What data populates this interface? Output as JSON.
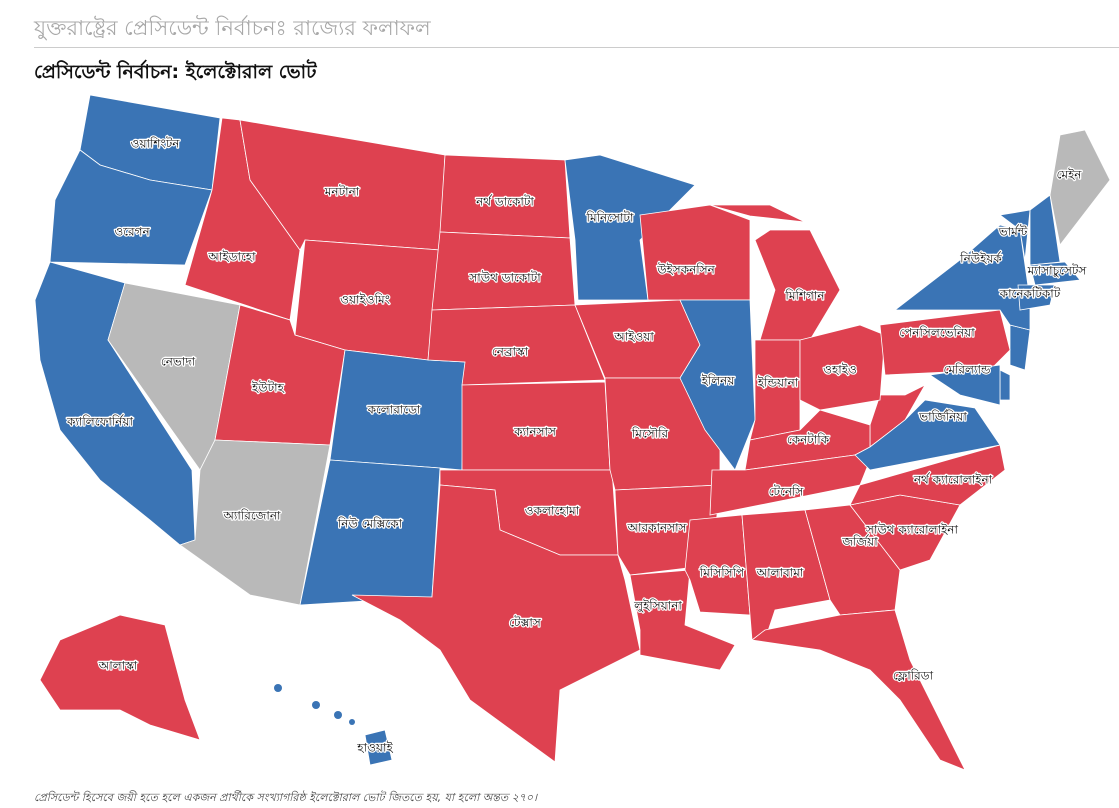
{
  "header": {
    "title": "যুক্তরাষ্ট্রের প্রেসিডেন্ট নির্বাচনঃ রাজ্যের ফলাফল",
    "subtitle": "প্রেসিডেন্ট নির্বাচন: ইলেক্টোরাল ভোট"
  },
  "map": {
    "states": [
      {
        "label": "ওয়াশিংটন",
        "color": "#3a74b5"
      },
      {
        "label": "ওরেগন",
        "color": "#3a74b5"
      },
      {
        "label": "ক্যালিফোর্নিয়া",
        "color": "#3a74b5"
      },
      {
        "label": "নেভাদা",
        "color": "#b9b9b9"
      },
      {
        "label": "আইডাহো",
        "color": "#de4150"
      },
      {
        "label": "মনটানা",
        "color": "#de4150"
      },
      {
        "label": "ওয়াইওমিং",
        "color": "#de4150"
      },
      {
        "label": "ইউটাহ",
        "color": "#de4150"
      },
      {
        "label": "অ্যারিজোনা",
        "color": "#b9b9b9"
      },
      {
        "label": "কলোরাডো",
        "color": "#3a74b5"
      },
      {
        "label": "নিউ মেক্সিকো",
        "color": "#3a74b5"
      },
      {
        "label": "নর্থ ডাকোটা",
        "color": "#de4150"
      },
      {
        "label": "সাউথ ডাকোটা",
        "color": "#de4150"
      },
      {
        "label": "নেব্রাস্কা",
        "color": "#de4150"
      },
      {
        "label": "ক্যানসাস",
        "color": "#de4150"
      },
      {
        "label": "ওকলাহোমা",
        "color": "#de4150"
      },
      {
        "label": "টেক্সাস",
        "color": "#de4150"
      },
      {
        "label": "মিনিসোটা",
        "color": "#3a74b5"
      },
      {
        "label": "আইওয়া",
        "color": "#de4150"
      },
      {
        "label": "মিসৌরি",
        "color": "#de4150"
      },
      {
        "label": "আরকানসাস",
        "color": "#de4150"
      },
      {
        "label": "লুইসিয়ানা",
        "color": "#de4150"
      },
      {
        "label": "উইসকনসিন",
        "color": "#de4150"
      },
      {
        "label": "ইলিনয়",
        "color": "#3a74b5"
      },
      {
        "label": "মিশিগান",
        "color": "#de4150"
      },
      {
        "label": "ইন্ডিয়ানা",
        "color": "#de4150"
      },
      {
        "label": "ওহাইও",
        "color": "#de4150"
      },
      {
        "label": "কেনটাকি",
        "color": "#de4150"
      },
      {
        "label": "টেনেসি",
        "color": "#de4150"
      },
      {
        "label": "মিসিসিপি",
        "color": "#de4150"
      },
      {
        "label": "আলাবামা",
        "color": "#de4150"
      },
      {
        "label": "জর্জিয়া",
        "color": "#de4150"
      },
      {
        "label": "ফ্লোরিডা",
        "color": "#de4150"
      },
      {
        "label": "সাউথ ক্যারোলাইনা",
        "color": "#de4150"
      },
      {
        "label": "নর্থ ক্যারোলাইনা",
        "color": "#de4150"
      },
      {
        "label": "ভার্জিনিয়া",
        "color": "#3a74b5"
      },
      {
        "label": "পেনসিলভেনিয়া",
        "color": "#de4150"
      },
      {
        "label": "নিউইয়র্ক",
        "color": "#3a74b5"
      },
      {
        "label": "ভার্মন্ট",
        "color": "#3a74b5"
      },
      {
        "label": "মেইন",
        "color": "#b9b9b9"
      },
      {
        "label": "ম্যাসাচুসেটস",
        "color": "#3a74b5"
      },
      {
        "label": "কানেকটিকাট",
        "color": "#3a74b5"
      },
      {
        "label": "মেরিল্যান্ড",
        "color": "#3a74b5"
      },
      {
        "label": "আলাস্কা",
        "color": "#de4150"
      },
      {
        "label": "হাওয়াই",
        "color": "#3a74b5"
      }
    ]
  },
  "footnote": "প্রেসিডেন্ট হিসেবে জয়ী হতে হলে একজন প্রার্থীকে সংখ্যাগরিষ্ঠ ইলেক্টোরাল ভোট জিততে হয়, যা হলো অন্তত ২৭০।"
}
